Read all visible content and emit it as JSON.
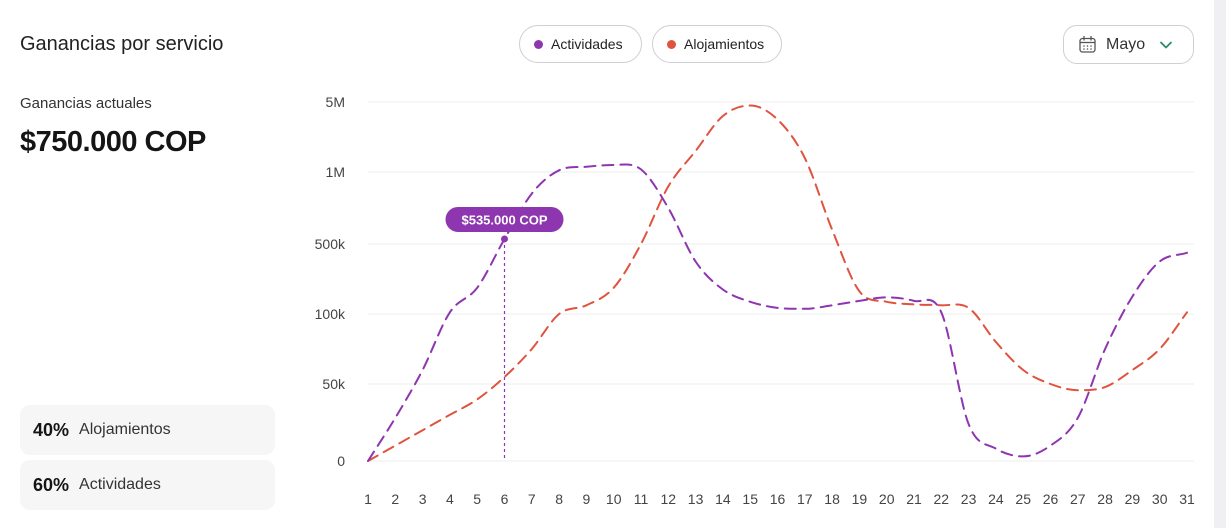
{
  "header": {
    "title": "Ganancias por servicio",
    "month_selector": {
      "label": "Mayo",
      "icon": "calendar-icon",
      "chevron": "chevron-down-icon"
    }
  },
  "summary": {
    "current_label": "Ganancias actuales",
    "current_value": "$750.000 COP"
  },
  "shares": [
    {
      "percent": "40%",
      "name": "Alojamientos"
    },
    {
      "percent": "60%",
      "name": "Actividades"
    }
  ],
  "colors": {
    "actividades": "#8e35b0",
    "alojamientos": "#e0533f",
    "tooltip_bg": "#8e35b0",
    "grid": "#ececef"
  },
  "chart_data": {
    "type": "line",
    "title": "Ganancias por servicio",
    "xlabel": "",
    "ylabel": "",
    "y_scale": "categorical-log",
    "y_ticks": [
      "0",
      "50k",
      "100k",
      "500k",
      "1M",
      "5M"
    ],
    "x": [
      1,
      2,
      3,
      4,
      5,
      6,
      7,
      8,
      9,
      10,
      11,
      12,
      13,
      14,
      15,
      16,
      17,
      18,
      19,
      20,
      21,
      22,
      23,
      24,
      25,
      26,
      27,
      28,
      29,
      30,
      31
    ],
    "legend": [
      {
        "name": "Actividades",
        "color": "#8e35b0"
      },
      {
        "name": "Alojamientos",
        "color": "#e0533f"
      }
    ],
    "series": [
      {
        "name": "Actividades",
        "color": "#8e35b0",
        "style": "dashed",
        "values": [
          0,
          28000,
          60000,
          110000,
          250000,
          535000,
          850000,
          1100000,
          1300000,
          1400000,
          1150000,
          750000,
          400000,
          240000,
          170000,
          135000,
          130000,
          150000,
          175000,
          195000,
          175000,
          110000,
          24000,
          8000,
          3000,
          10000,
          28000,
          75000,
          200000,
          400000,
          450000
        ]
      },
      {
        "name": "Alojamientos",
        "color": "#e0533f",
        "style": "dashed",
        "values": [
          0,
          10000,
          20000,
          30000,
          40000,
          55000,
          75000,
          100000,
          150000,
          250000,
          500000,
          900000,
          2200000,
          4200000,
          4800000,
          4000000,
          1800000,
          600000,
          230000,
          170000,
          155000,
          150000,
          135000,
          80000,
          60000,
          50000,
          46000,
          48000,
          60000,
          75000,
          110000
        ]
      }
    ],
    "annotations": [
      {
        "series": "Actividades",
        "x": 6,
        "value": 535000,
        "label": "$535.000 COP"
      }
    ]
  }
}
